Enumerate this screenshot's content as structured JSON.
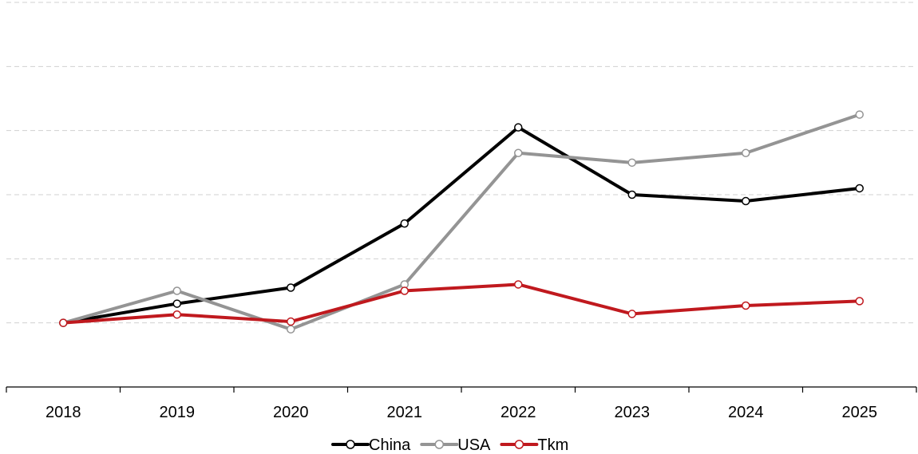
{
  "chart_data": {
    "type": "line",
    "title": "",
    "xlabel": "",
    "ylabel": "",
    "x": [
      "2018",
      "2019",
      "2020",
      "2021",
      "2022",
      "2023",
      "2024",
      "2025"
    ],
    "ylim": [
      0,
      6
    ],
    "grid": true,
    "legend": "bottom-center",
    "series": [
      {
        "name": "China",
        "color": "#000000",
        "values": [
          1.0,
          1.3,
          1.55,
          2.55,
          4.05,
          3.0,
          2.9,
          3.1
        ]
      },
      {
        "name": "USA",
        "color": "#949494",
        "values": [
          1.0,
          1.5,
          0.9,
          1.6,
          3.65,
          3.5,
          3.65,
          4.25
        ]
      },
      {
        "name": "Tkm",
        "color": "#c0191e",
        "values": [
          1.0,
          1.13,
          1.02,
          1.5,
          1.6,
          1.14,
          1.27,
          1.34
        ]
      }
    ]
  }
}
